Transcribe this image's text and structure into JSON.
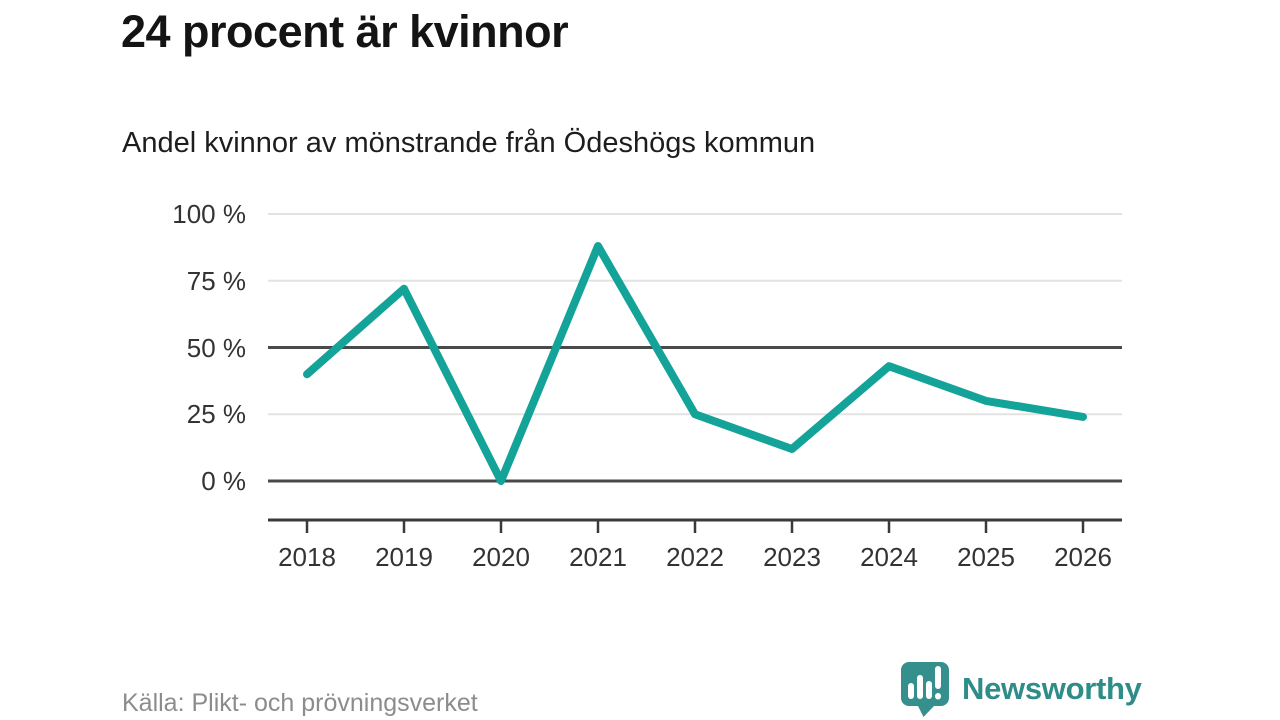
{
  "header": {
    "title": "24 procent är kvinnor",
    "subtitle": "Andel kvinnor av mönstrande från Ödeshögs kommun"
  },
  "chart_data": {
    "type": "line",
    "categories": [
      "2018",
      "2019",
      "2020",
      "2021",
      "2022",
      "2023",
      "2024",
      "2025",
      "2026"
    ],
    "values": [
      40,
      72,
      0,
      88,
      25,
      12,
      43,
      30,
      24
    ],
    "title": "24 procent är kvinnor",
    "subtitle": "Andel kvinnor av mönstrande från Ödeshögs kommun",
    "xlabel": "",
    "ylabel": "",
    "ylim": [
      0,
      100
    ],
    "yticks": [
      {
        "value": 100,
        "label": "100 %",
        "emphasis": false
      },
      {
        "value": 75,
        "label": "75 %",
        "emphasis": false
      },
      {
        "value": 50,
        "label": "50 %",
        "emphasis": true
      },
      {
        "value": 25,
        "label": "25 %",
        "emphasis": false
      },
      {
        "value": 0,
        "label": "0 %",
        "emphasis": true
      }
    ],
    "grid": "horizontal-only",
    "legend": "none",
    "line_color": "#13a398"
  },
  "footer": {
    "source": "Källa: Plikt- och prövningsverket",
    "brand": "Newsworthy",
    "logo_icon": "newsworthy-speech-bubble-bar-chart-icon"
  },
  "colors": {
    "background": "#ffffff",
    "title_text": "#141414",
    "subtitle_text": "#1d1d1d",
    "tick_text": "#333333",
    "grid_light": "#e3e3e3",
    "grid_dark": "#4a4a4a",
    "axis": "#3a3a3a",
    "line": "#13a398",
    "source_text": "#8c8c8c",
    "brand_teal": "#2e8c89",
    "logo_bubble": "#35908d"
  }
}
